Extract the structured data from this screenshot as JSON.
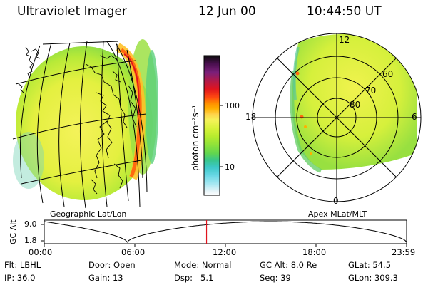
{
  "header": {
    "instrument": "Ultraviolet Imager",
    "date": "12 Jun 00",
    "time": "10:44:50 UT"
  },
  "colorbar": {
    "label": "photon cm⁻²s⁻¹",
    "ticks": [
      "100",
      "10"
    ],
    "colors": [
      "#0b0b0b",
      "#4a0f4f",
      "#7a1f7a",
      "#b01a4a",
      "#e0141e",
      "#ff4a10",
      "#ff8c00",
      "#ffb000",
      "#ffd24a",
      "#f6f25a",
      "#d8f23a",
      "#b6ec2e",
      "#8ee23a",
      "#62d64e",
      "#38c68c",
      "#3cc8c8",
      "#6ad8e6",
      "#a8e8f2",
      "#e6f4f8",
      "#ffffff"
    ]
  },
  "left_panel": {
    "caption": "Geographic Lat/Lon"
  },
  "right_panel": {
    "caption": "Apex MLat/MLT",
    "mlt_labels": {
      "top": "12",
      "left": "18",
      "right": "6",
      "bottom": "0"
    },
    "lat_labels": [
      "60",
      "70",
      "80"
    ]
  },
  "timeline": {
    "ylabel": "GC Alt",
    "yticks": [
      "9.0",
      "1.8"
    ],
    "xticks": [
      "00:00",
      "06:00",
      "12:00",
      "18:00",
      "23:59"
    ],
    "current_hour": 10.75
  },
  "status": {
    "flt_label": "Flt:",
    "flt_value": "LBHL",
    "door_label": "Door:",
    "door_value": "Open",
    "mode_label": "Mode:",
    "mode_value": "Normal",
    "gcalt_label": "GC Alt:",
    "gcalt_value": "8.0 Re",
    "glat_label": "GLat:",
    "glat_value": "54.5",
    "ip_label": "IP:",
    "ip_value": "36.0",
    "gain_label": "Gain:",
    "gain_value": "13",
    "dsp_label": "Dsp:",
    "dsp_value": "5.1",
    "seq_label": "Seq:",
    "seq_value": "39",
    "glon_label": "GLon:",
    "glon_value": "309.3"
  }
}
